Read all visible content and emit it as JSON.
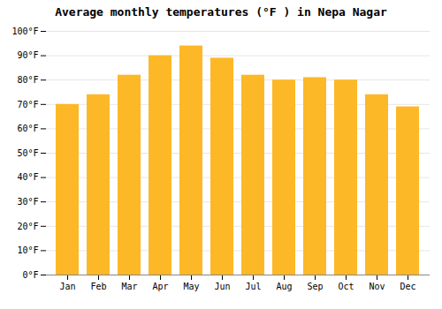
{
  "chart_data": {
    "type": "bar",
    "title": "Average monthly temperatures (°F ) in Nepa Nagar",
    "categories": [
      "Jan",
      "Feb",
      "Mar",
      "Apr",
      "May",
      "Jun",
      "Jul",
      "Aug",
      "Sep",
      "Oct",
      "Nov",
      "Dec"
    ],
    "values": [
      70,
      74,
      82,
      90,
      94,
      89,
      82,
      80,
      81,
      80,
      74,
      69
    ],
    "color": "#FDB827",
    "ylim": [
      0,
      100
    ],
    "yticks": [
      {
        "value": 0,
        "label": "0°F"
      },
      {
        "value": 10,
        "label": "10°F"
      },
      {
        "value": 20,
        "label": "20°F"
      },
      {
        "value": 30,
        "label": "30°F"
      },
      {
        "value": 40,
        "label": "40°F"
      },
      {
        "value": 50,
        "label": "50°F"
      },
      {
        "value": 60,
        "label": "60°F"
      },
      {
        "value": 70,
        "label": "70°F"
      },
      {
        "value": 80,
        "label": "80°F"
      },
      {
        "value": 90,
        "label": "90°F"
      },
      {
        "value": 100,
        "label": "100°F"
      }
    ],
    "grid": true
  }
}
